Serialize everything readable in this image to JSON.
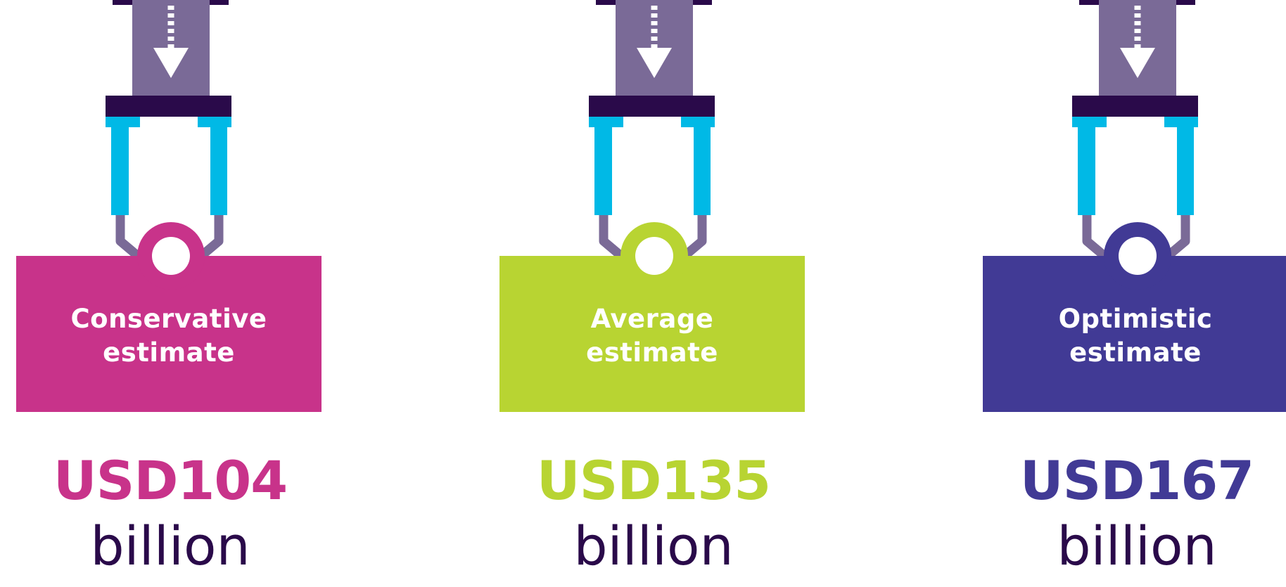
{
  "colors": {
    "piston": "#7a6a97",
    "dark": "#2a0a4a",
    "cyan": "#00b9e6",
    "arrow": "#ffffff"
  },
  "icons": {
    "claw": "claw-machine-icon",
    "arrow": "down-arrow-icon"
  },
  "estimates": [
    {
      "label_line1": "Conservative",
      "label_line2": "estimate",
      "amount": "USD104",
      "unit": "billion",
      "color": "#c8338a"
    },
    {
      "label_line1": "Average",
      "label_line2": "estimate",
      "amount": "USD135",
      "unit": "billion",
      "color": "#b8d432"
    },
    {
      "label_line1": "Optimistic",
      "label_line2": "estimate",
      "amount": "USD167",
      "unit": "billion",
      "color": "#413a95"
    }
  ]
}
